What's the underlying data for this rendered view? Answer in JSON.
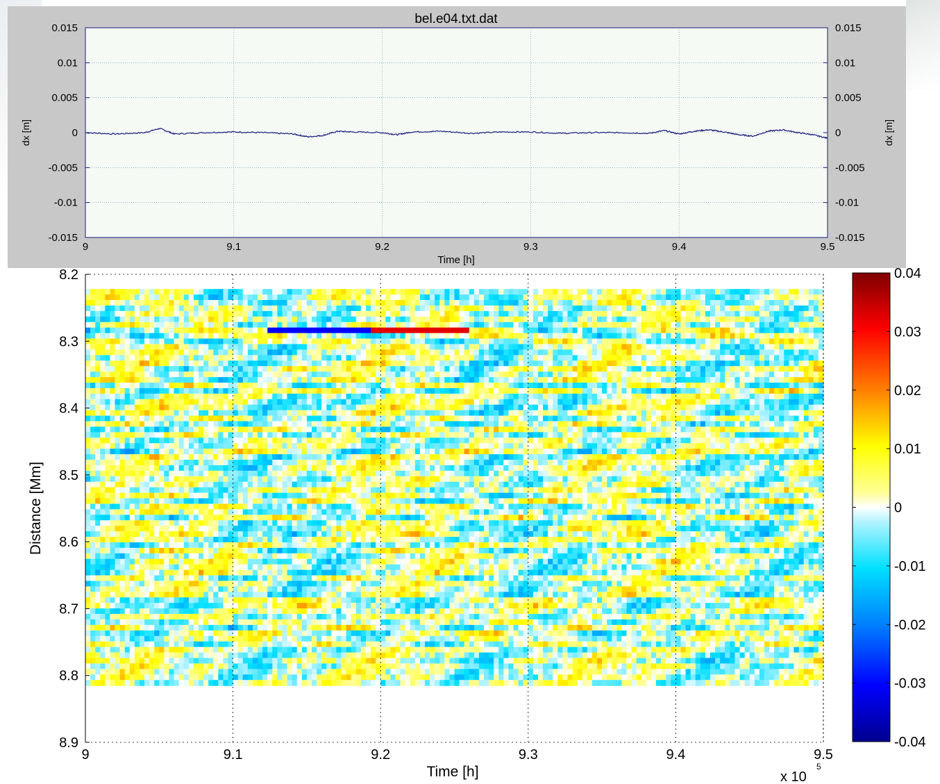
{
  "chart_data": [
    {
      "type": "line",
      "title": "bel.e04.txt.dat",
      "xlabel": "Time [h]",
      "ylabel": "dx [m]",
      "ylabel_right": "dx [m]",
      "xlim": [
        9,
        9.5
      ],
      "ylim": [
        -0.015,
        0.015
      ],
      "xticks": [
        "9",
        "9.1",
        "9.2",
        "9.3",
        "9.4",
        "9.5"
      ],
      "yticks": [
        "0.015",
        "0.01",
        "0.005",
        "0",
        "-0.005",
        "-0.01",
        "-0.015"
      ],
      "grid": true,
      "line_color": "#1a1a7a",
      "series": [
        {
          "x": [
            9.0,
            9.02,
            9.04,
            9.05,
            9.06,
            9.08,
            9.1,
            9.12,
            9.14,
            9.15,
            9.16,
            9.17,
            9.18,
            9.2,
            9.21,
            9.22,
            9.24,
            9.26,
            9.28,
            9.3,
            9.32,
            9.34,
            9.36,
            9.38,
            9.39,
            9.4,
            9.41,
            9.42,
            9.43,
            9.44,
            9.45,
            9.46,
            9.47,
            9.48,
            9.49,
            9.5
          ],
          "y": [
            0.0,
            -0.0002,
            0.0,
            0.0006,
            -0.0002,
            0.0,
            0.0001,
            0.0,
            -0.0002,
            -0.0006,
            -0.0004,
            0.0002,
            0.0001,
            0.0,
            -0.0003,
            0.0001,
            0.0002,
            -0.0001,
            0.0001,
            0.0001,
            -0.0001,
            0.0,
            0.0,
            -0.0001,
            0.0003,
            -0.0002,
            0.0002,
            0.0004,
            0.0001,
            -0.0003,
            -0.0005,
            0.0002,
            0.0004,
            0.0,
            -0.0003,
            -0.0008
          ]
        }
      ]
    },
    {
      "type": "heatmap",
      "xlabel": "Time [h]",
      "ylabel": "Distance [Mm]",
      "xlim": [
        9,
        9.5
      ],
      "ylim": [
        8.2,
        8.9
      ],
      "x_multiplier": "x 10",
      "x_multiplier_exponent": "5",
      "xticks": [
        "9",
        "9.1",
        "9.2",
        "9.3",
        "9.4",
        "9.5"
      ],
      "yticks": [
        "8.2",
        "8.3",
        "8.4",
        "8.5",
        "8.6",
        "8.7",
        "8.8",
        "8.9"
      ],
      "data_yrange": [
        8.222,
        8.815
      ],
      "grid": true,
      "colorbar": {
        "range": [
          -0.04,
          0.04
        ],
        "ticks": [
          "0.04",
          "0.03",
          "0.02",
          "0.01",
          "0",
          "-0.01",
          "-0.02",
          "-0.03",
          "-0.04"
        ],
        "colormap": "jet, white near zero"
      }
    }
  ]
}
